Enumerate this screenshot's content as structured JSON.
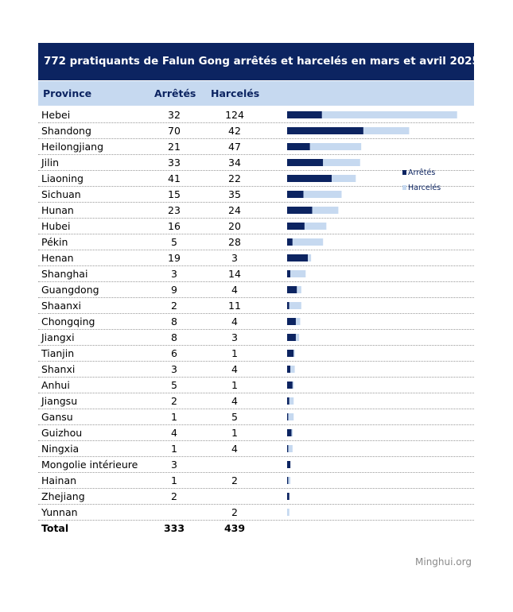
{
  "chart_data": {
    "type": "bar",
    "title": "772 pratiquants de Falun Gong arrêtés et harcelés en mars et avril 2025",
    "columns": {
      "province": "Province",
      "arrested": "Arrêtés",
      "harassed": "Harcelés"
    },
    "categories": [
      "Hebei",
      "Shandong",
      "Heilongjiang",
      "Jilin",
      "Liaoning",
      "Sichuan",
      "Hunan",
      "Hubei",
      "Pékin",
      "Henan",
      "Shanghai",
      "Guangdong",
      "Shaanxi",
      "Chongqing",
      "Jiangxi",
      "Tianjin",
      "Shanxi",
      "Anhui",
      "Jiangsu",
      "Gansu",
      "Guizhou",
      "Ningxia",
      "Mongolie intérieure",
      "Hainan",
      "Zhejiang",
      "Yunnan"
    ],
    "series": [
      {
        "name": "Arrêtés",
        "color": "#0c2461",
        "values": [
          32,
          70,
          21,
          33,
          41,
          15,
          23,
          16,
          5,
          19,
          3,
          9,
          2,
          8,
          8,
          6,
          3,
          5,
          2,
          1,
          4,
          1,
          3,
          1,
          2,
          null
        ]
      },
      {
        "name": "Harcelés",
        "color": "#c6d9f0",
        "values": [
          124,
          42,
          47,
          34,
          22,
          35,
          24,
          20,
          28,
          3,
          14,
          4,
          11,
          4,
          3,
          1,
          4,
          1,
          4,
          5,
          1,
          4,
          null,
          2,
          null,
          2
        ]
      }
    ],
    "stacked": true,
    "orientation": "horizontal",
    "total": {
      "label": "Total",
      "arrested": "333",
      "harassed": "439"
    },
    "legend_position": "right"
  },
  "source": "Minghui.org"
}
